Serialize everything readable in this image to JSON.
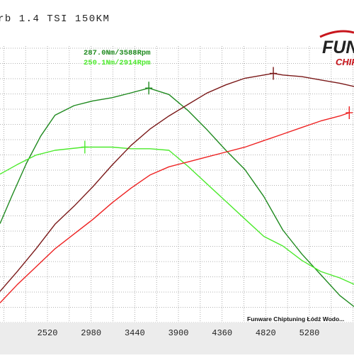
{
  "page": {
    "title": "rb 1.4 TSI 150KM",
    "logo_text": "FUNWARE",
    "logo_sub": "CHIPTUNING",
    "watermark": "Funware Chiptuning Łódź Wodo..."
  },
  "colors": {
    "grid": "#999999",
    "plot_bg": "#ffffff",
    "axis_bg": "#ececec",
    "torque_tuned": "#1f8a1f",
    "torque_stock": "#4cea2c",
    "power_tuned": "#7a1818",
    "power_stock": "#ee2222",
    "logo_red": "#c8161d"
  },
  "chart_data": {
    "type": "line",
    "xlabel": "",
    "ylabel": "",
    "x_ticks": [
      2520,
      2980,
      3440,
      3900,
      4360,
      4820,
      5280
    ],
    "xlim": [
      2020,
      5750
    ],
    "annotations": [
      {
        "text": "287.0Nm/3588Rpm",
        "x": 3588,
        "series": "torque_tuned"
      },
      {
        "text": "250.1Nm/2914Rpm",
        "x": 2914,
        "series": "torque_stock"
      }
    ],
    "series": [
      {
        "key": "torque_tuned",
        "axis": "torque",
        "x": [
          2020,
          2150,
          2300,
          2450,
          2600,
          2800,
          3000,
          3200,
          3400,
          3588,
          3800,
          4000,
          4200,
          4400,
          4600,
          4800,
          5000,
          5200,
          5400,
          5600,
          5750
        ],
        "y": [
          202,
          220,
          240,
          257,
          270,
          276,
          279,
          281,
          284,
          287,
          283,
          273,
          261,
          248,
          236,
          219,
          198,
          183,
          170,
          157,
          150
        ]
      },
      {
        "key": "torque_stock",
        "axis": "torque",
        "x": [
          2020,
          2200,
          2400,
          2600,
          2914,
          3200,
          3400,
          3600,
          3800,
          4000,
          4200,
          4400,
          4600,
          4800,
          5000,
          5200,
          5400,
          5600,
          5750
        ],
        "y": [
          233,
          239,
          245,
          248,
          250,
          250,
          249,
          249,
          248,
          238,
          227,
          216,
          205,
          194,
          188,
          179,
          172,
          168,
          164
        ]
      },
      {
        "key": "power_tuned",
        "axis": "power",
        "x": [
          2020,
          2200,
          2400,
          2600,
          2800,
          3000,
          3200,
          3400,
          3600,
          3800,
          4000,
          4200,
          4400,
          4600,
          4800,
          4900,
          5000,
          5200,
          5400,
          5600,
          5750
        ],
        "y": [
          59,
          71,
          85,
          100,
          111,
          123,
          136,
          148,
          158,
          166,
          173,
          180,
          185,
          189,
          191,
          192,
          191,
          190,
          188,
          186,
          184
        ]
      },
      {
        "key": "power_stock",
        "axis": "power",
        "x": [
          2020,
          2200,
          2400,
          2600,
          2800,
          3000,
          3200,
          3400,
          3600,
          3800,
          4000,
          4200,
          4400,
          4600,
          4800,
          5000,
          5200,
          5400,
          5600,
          5700
        ],
        "y": [
          52,
          63,
          74,
          85,
          94,
          103,
          113,
          122,
          130,
          135,
          138,
          141,
          144,
          147,
          151,
          155,
          159,
          163,
          166,
          168
        ]
      }
    ],
    "markers": [
      {
        "series": "torque_tuned",
        "x": 3588
      },
      {
        "series": "torque_stock",
        "x": 2914
      },
      {
        "series": "power_tuned",
        "x": 4900
      },
      {
        "series": "power_stock",
        "x": 5700
      }
    ]
  }
}
